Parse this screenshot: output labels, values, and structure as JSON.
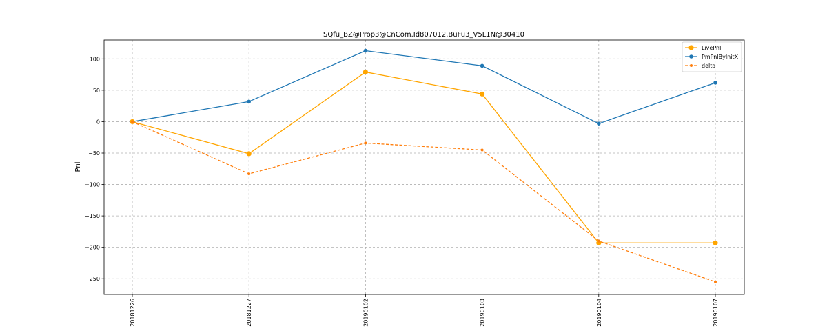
{
  "chart_data": {
    "type": "line",
    "title": "SQfu_BZ@Prop3@CnCom.Id807012.BuFu3_V5L1N@30410",
    "xlabel": "",
    "ylabel": "Pnl",
    "categories": [
      "20181226",
      "20181227",
      "20190102",
      "20190103",
      "20190104",
      "20190107"
    ],
    "ylim": [
      -275,
      130
    ],
    "yticks": [
      100,
      50,
      0,
      -50,
      -100,
      -150,
      -200,
      -250
    ],
    "ytick_labels": [
      "100",
      "50",
      "0",
      "−50",
      "−100",
      "−150",
      "−200",
      "−250"
    ],
    "grid": true,
    "legend_position": "top-right",
    "series": [
      {
        "name": "LivePnl",
        "values": [
          0,
          -51,
          79,
          44,
          -193,
          -193
        ],
        "color": "#ffa500",
        "style": "solid",
        "marker": "large"
      },
      {
        "name": "PmPnlByInitX",
        "values": [
          0,
          32,
          113,
          89,
          -3,
          62
        ],
        "color": "#1f77b4",
        "style": "solid",
        "marker": "medium"
      },
      {
        "name": "delta",
        "values": [
          0,
          -83,
          -34,
          -45,
          -190,
          -255
        ],
        "color": "#ff7f0e",
        "style": "dashed",
        "marker": "small"
      }
    ]
  }
}
